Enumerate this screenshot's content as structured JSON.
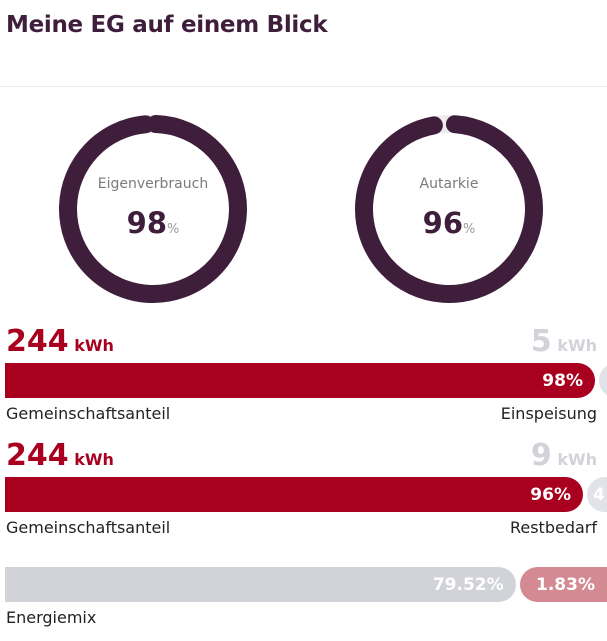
{
  "header": {
    "title": "Meine EG auf einem Blick"
  },
  "gauges": [
    {
      "label": "Eigenverbrauch",
      "value": "98",
      "unit": "%",
      "fraction": 0.98
    },
    {
      "label": "Autarkie",
      "value": "96",
      "unit": "%",
      "fraction": 0.96
    }
  ],
  "consumption_rows": [
    {
      "main_amount": "244",
      "main_unit": "kWh",
      "other_amount": "5",
      "other_unit": "kWh",
      "bar_percent_label": "98%",
      "bar_fraction": 0.98,
      "main_caption": "Gemeinschaftsanteil",
      "other_caption": "Einspeisung"
    },
    {
      "main_amount": "244",
      "main_unit": "kWh",
      "other_amount": "9",
      "other_unit": "kWh",
      "bar_percent_label": "96%",
      "bar_fraction": 0.96,
      "rest_label": "4",
      "main_caption": "Gemeinschaftsanteil",
      "other_caption": "Restbedarf"
    }
  ],
  "energy_mix": {
    "caption": "Energiemix",
    "segments": [
      {
        "label": "79.52%",
        "value": 79.52,
        "color": "#d1d3d8"
      },
      {
        "label": "1.83%",
        "value": 1.83,
        "color": "#d48a93"
      }
    ]
  },
  "colors": {
    "accent": "#a8001e",
    "dark": "#3f1e3c",
    "muted": "#d1d3d8"
  }
}
